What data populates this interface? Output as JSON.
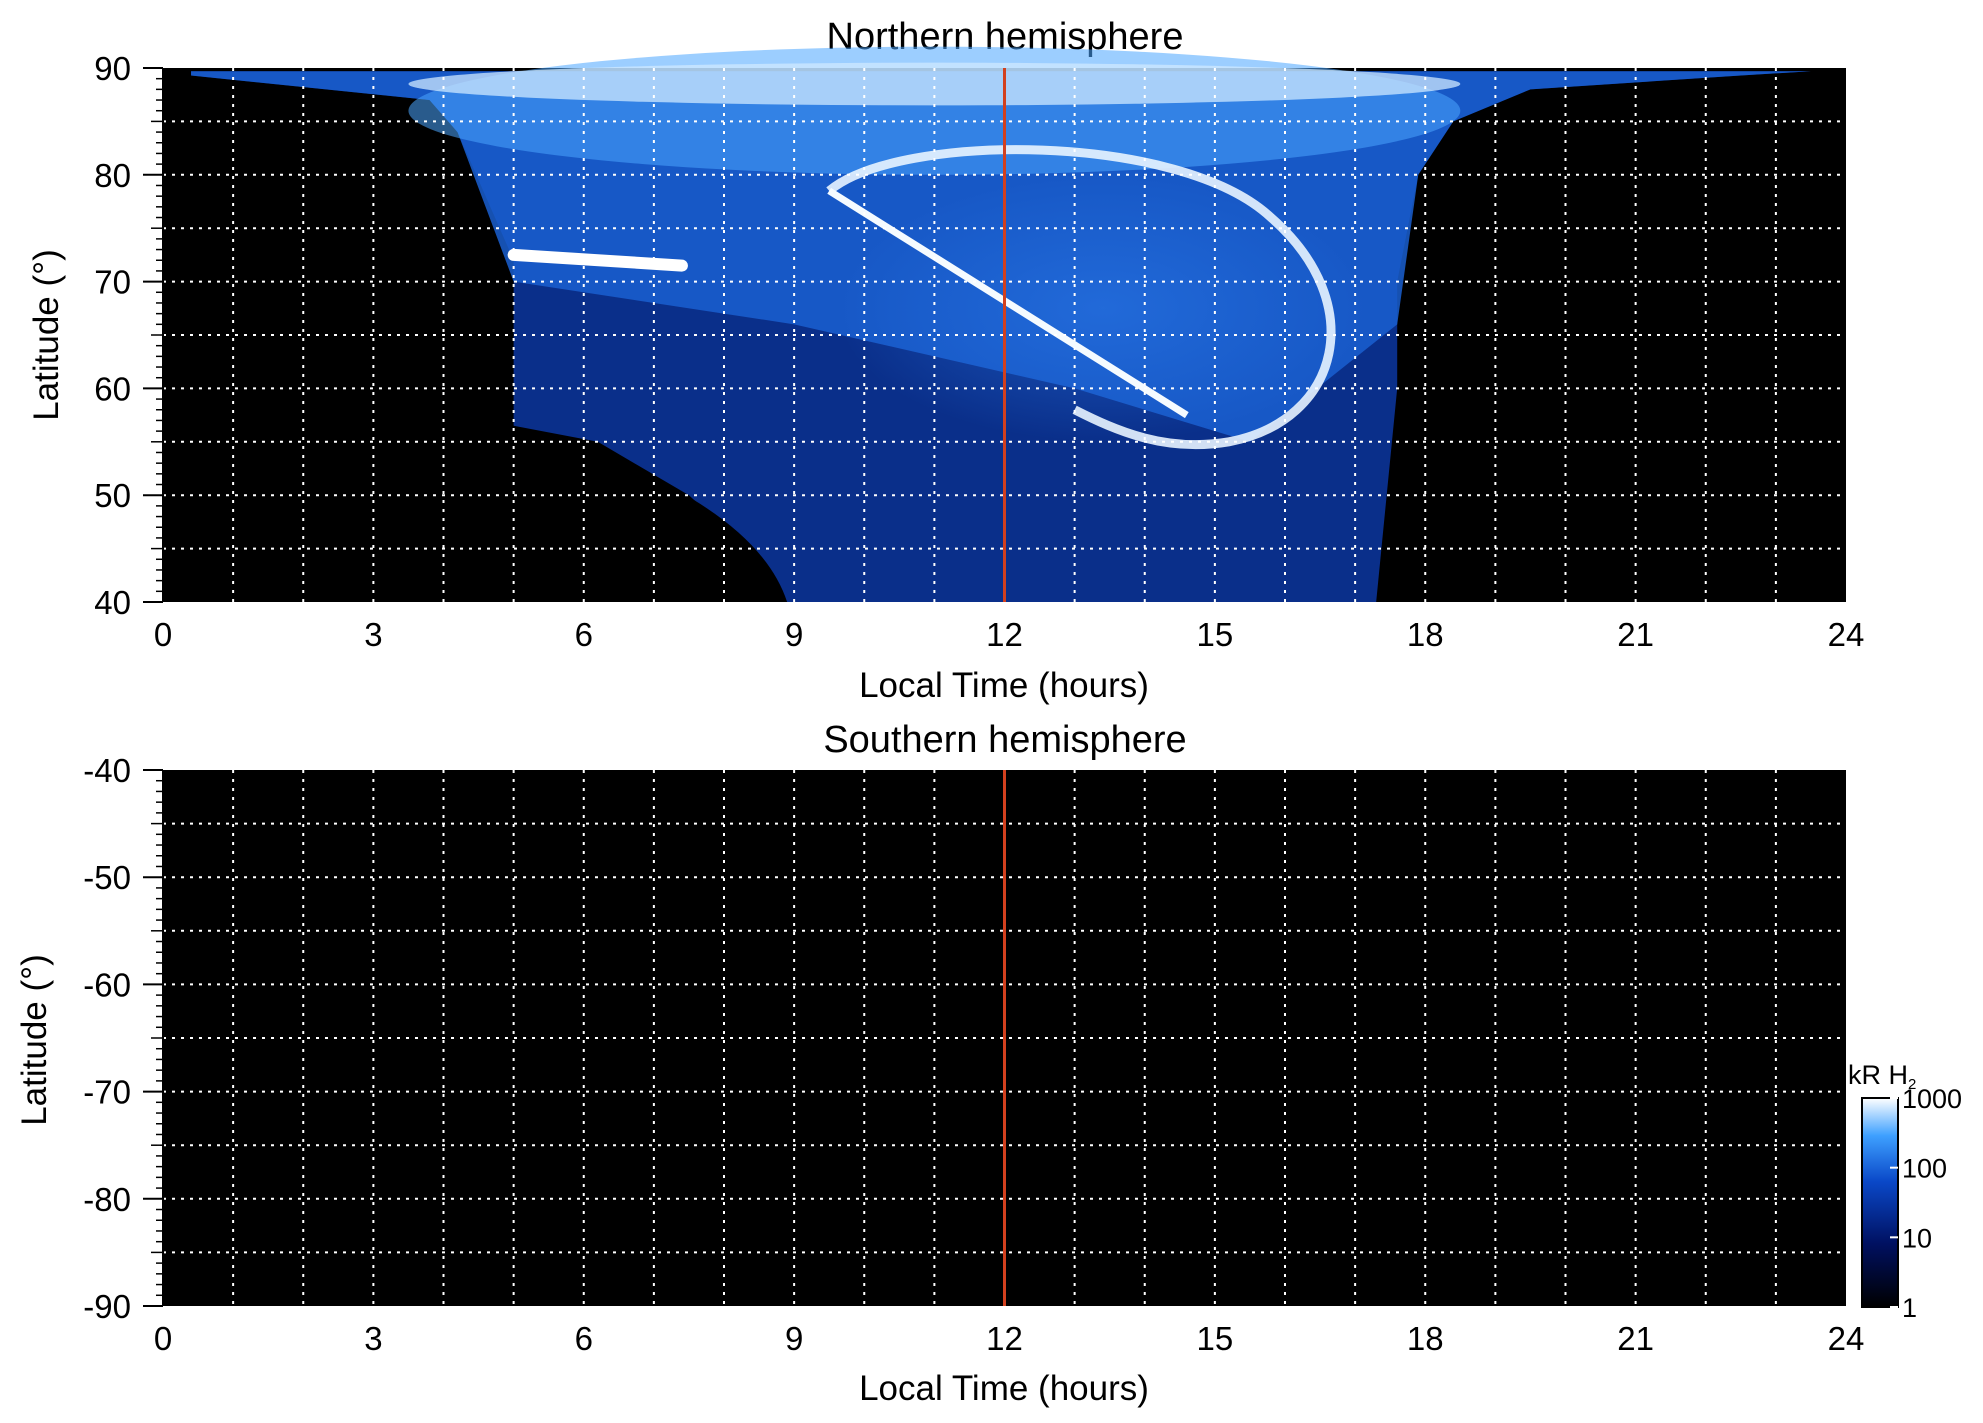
{
  "chart_data": [
    {
      "type": "heatmap",
      "title": "Northern hemisphere",
      "xlabel": "Local Time (hours)",
      "ylabel": "Latitude (°)",
      "xlim": [
        0,
        24
      ],
      "ylim": [
        40,
        90
      ],
      "x_ticks": [
        "0",
        "3",
        "6",
        "9",
        "12",
        "15",
        "18",
        "21",
        "24"
      ],
      "y_ticks": [
        "40",
        "50",
        "60",
        "70",
        "80",
        "90"
      ],
      "grid": true,
      "reference_line": {
        "local_time": 12,
        "color": "#d2401e"
      },
      "features": [
        {
          "kind": "night-side mask (no data)",
          "local_time": [
            0,
            5.0
          ],
          "latitude": [
            40,
            90
          ]
        },
        {
          "kind": "night-side mask (no data)",
          "local_time": [
            17.5,
            24
          ],
          "latitude": [
            40,
            90
          ]
        },
        {
          "kind": "bright auroral arc",
          "local_time": [
            5.0,
            7.4
          ],
          "latitude": 72.5
        },
        {
          "kind": "bright auroral oval",
          "center_local_time": 13.4,
          "center_latitude": 67.5
        }
      ]
    },
    {
      "type": "heatmap",
      "title": "Southern hemisphere",
      "xlabel": "Local Time (hours)",
      "ylabel": "Latitude (°)",
      "xlim": [
        0,
        24
      ],
      "ylim": [
        -90,
        -40
      ],
      "x_ticks": [
        "0",
        "3",
        "6",
        "9",
        "12",
        "15",
        "18",
        "21",
        "24"
      ],
      "y_ticks": [
        "-40",
        "-50",
        "-60",
        "-70",
        "-80",
        "-90"
      ],
      "grid": true,
      "reference_line": {
        "local_time": 12,
        "color": "#d2401e"
      },
      "features": []
    }
  ],
  "colorbar": {
    "label": "kR H",
    "label_subscript": "2",
    "scale": "log",
    "range": [
      1,
      1000
    ],
    "ticks": [
      "1000",
      "100",
      "10",
      "1"
    ],
    "colors": [
      "#000000",
      "#001060",
      "#0a48c8",
      "#3ea0ff",
      "#ffffff"
    ]
  }
}
